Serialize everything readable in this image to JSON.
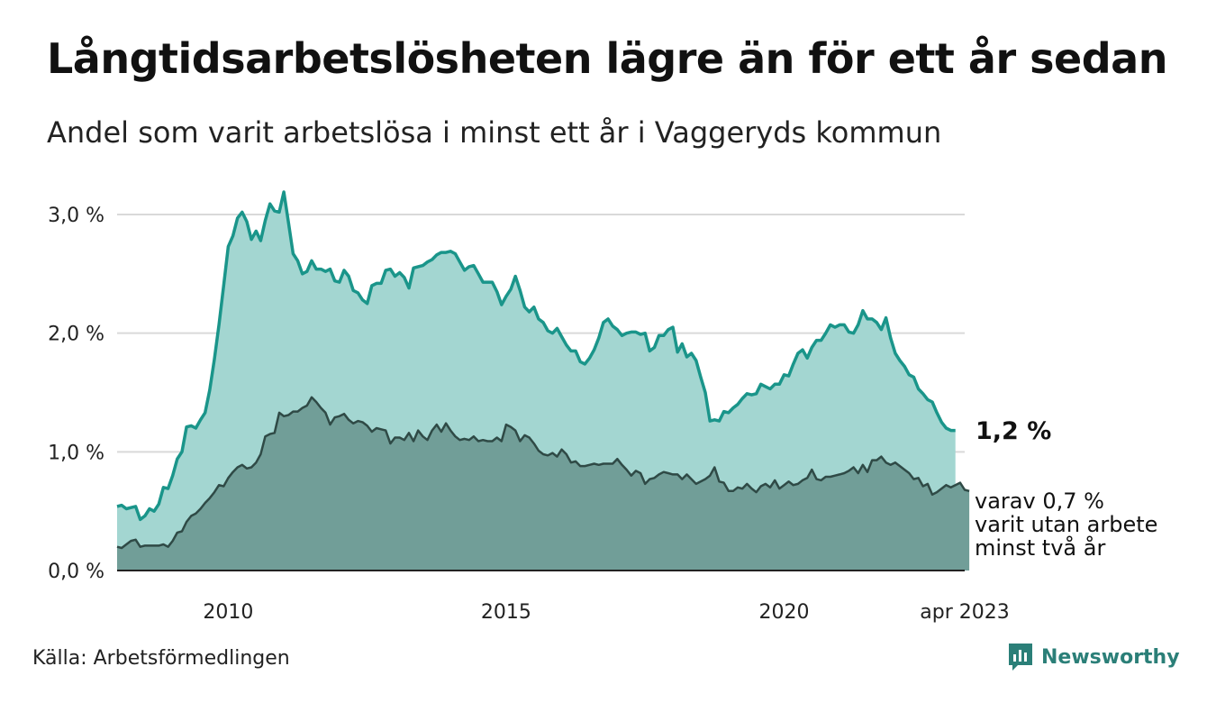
{
  "title": "Långtidsarbetslösheten lägre än för ett år sedan",
  "subtitle": "Andel som varit arbetslösa i minst ett år i Vaggeryds kommun",
  "source": "Källa: Arbetsförmedlingen",
  "brand": {
    "name": "Newsworthy",
    "icon": "newsworthy-logo-icon"
  },
  "colors": {
    "total_fill": "#a3d6d1",
    "total_line": "#1a958a",
    "sub_fill": "#719e98",
    "sub_line": "#2f4a46",
    "grid": "#d9d9d9",
    "brand": "#2b7f78"
  },
  "annotations": {
    "main": "1,2 %",
    "sub": [
      "varav 0,7 %",
      "varit utan arbete",
      "minst två år"
    ]
  },
  "chart_data": {
    "type": "area",
    "x_start": "2008-01",
    "x_end": "2023-04",
    "x_ticks": [
      {
        "x": "2010-01",
        "label": "2010"
      },
      {
        "x": "2015-01",
        "label": "2015"
      },
      {
        "x": "2020-01",
        "label": "2020"
      },
      {
        "x": "2023-04",
        "label": "apr 2023"
      }
    ],
    "y_ticks": [
      {
        "value": 0,
        "label": "0,0 %"
      },
      {
        "value": 1,
        "label": "1,0 %"
      },
      {
        "value": 2,
        "label": "2,0 %"
      },
      {
        "value": 3,
        "label": "3,0 %"
      }
    ],
    "ylim": [
      0,
      3.2
    ],
    "grid": true,
    "series": [
      {
        "values": [
          0.54,
          0.55,
          0.52,
          0.53,
          0.54,
          0.43,
          0.46,
          0.52,
          0.5,
          0.56,
          0.7,
          0.69,
          0.8,
          0.94,
          1.0,
          1.21,
          1.22,
          1.2,
          1.27,
          1.33,
          1.52,
          1.78,
          2.07,
          2.4,
          2.73,
          2.82,
          2.97,
          3.02,
          2.94,
          2.79,
          2.86,
          2.78,
          2.95,
          3.09,
          3.03,
          3.02,
          3.19,
          2.93,
          2.67,
          2.61,
          2.5,
          2.52,
          2.61,
          2.54,
          2.54,
          2.52,
          2.54,
          2.44,
          2.43,
          2.53,
          2.48,
          2.36,
          2.34,
          2.28,
          2.25,
          2.4,
          2.42,
          2.42,
          2.53,
          2.54,
          2.48,
          2.51,
          2.47,
          2.38,
          2.55,
          2.56,
          2.57,
          2.6,
          2.62,
          2.66,
          2.68,
          2.68,
          2.69,
          2.67,
          2.6,
          2.53,
          2.56,
          2.57,
          2.5,
          2.43,
          2.43,
          2.43,
          2.35,
          2.24,
          2.31,
          2.37,
          2.48,
          2.36,
          2.22,
          2.18,
          2.22,
          2.12,
          2.09,
          2.02,
          2.0,
          2.04,
          1.97,
          1.9,
          1.85,
          1.85,
          1.76,
          1.74,
          1.79,
          1.86,
          1.96,
          2.09,
          2.12,
          2.06,
          2.03,
          1.98,
          2.0,
          2.01,
          2.01,
          1.99,
          2.0,
          1.85,
          1.88,
          1.98,
          1.98,
          2.03,
          2.05,
          1.84,
          1.91,
          1.8,
          1.83,
          1.77,
          1.63,
          1.5,
          1.26,
          1.27,
          1.26,
          1.34,
          1.33,
          1.37,
          1.4,
          1.45,
          1.49,
          1.48,
          1.49,
          1.57,
          1.55,
          1.53,
          1.57,
          1.57,
          1.65,
          1.64,
          1.74,
          1.83,
          1.86,
          1.79,
          1.88,
          1.94,
          1.94,
          2.0,
          2.07,
          2.05,
          2.07,
          2.07,
          2.01,
          2.0,
          2.07,
          2.19,
          2.12,
          2.12,
          2.09,
          2.03,
          2.13,
          1.96,
          1.83,
          1.77,
          1.72,
          1.65,
          1.63,
          1.53,
          1.49,
          1.44,
          1.42,
          1.33,
          1.25,
          1.2,
          1.18,
          1.18
        ]
      },
      {
        "values": [
          0.2,
          0.19,
          0.22,
          0.25,
          0.26,
          0.2,
          0.21,
          0.21,
          0.21,
          0.21,
          0.22,
          0.2,
          0.25,
          0.32,
          0.33,
          0.41,
          0.46,
          0.48,
          0.52,
          0.57,
          0.61,
          0.66,
          0.72,
          0.71,
          0.78,
          0.83,
          0.87,
          0.89,
          0.86,
          0.87,
          0.91,
          0.98,
          1.13,
          1.15,
          1.16,
          1.33,
          1.3,
          1.31,
          1.34,
          1.34,
          1.37,
          1.39,
          1.46,
          1.42,
          1.37,
          1.33,
          1.23,
          1.29,
          1.3,
          1.32,
          1.27,
          1.24,
          1.26,
          1.25,
          1.22,
          1.17,
          1.2,
          1.19,
          1.18,
          1.07,
          1.12,
          1.12,
          1.1,
          1.16,
          1.09,
          1.18,
          1.13,
          1.1,
          1.18,
          1.23,
          1.17,
          1.24,
          1.18,
          1.13,
          1.1,
          1.11,
          1.1,
          1.13,
          1.09,
          1.1,
          1.09,
          1.09,
          1.12,
          1.09,
          1.23,
          1.21,
          1.18,
          1.09,
          1.14,
          1.12,
          1.07,
          1.01,
          0.98,
          0.97,
          0.99,
          0.96,
          1.02,
          0.98,
          0.91,
          0.92,
          0.88,
          0.88,
          0.89,
          0.9,
          0.89,
          0.9,
          0.9,
          0.9,
          0.94,
          0.89,
          0.85,
          0.8,
          0.84,
          0.82,
          0.73,
          0.77,
          0.78,
          0.81,
          0.83,
          0.82,
          0.81,
          0.81,
          0.77,
          0.81,
          0.77,
          0.73,
          0.75,
          0.77,
          0.8,
          0.87,
          0.75,
          0.74,
          0.67,
          0.67,
          0.7,
          0.69,
          0.73,
          0.69,
          0.66,
          0.71,
          0.73,
          0.7,
          0.76,
          0.69,
          0.72,
          0.75,
          0.72,
          0.73,
          0.76,
          0.78,
          0.85,
          0.77,
          0.76,
          0.79,
          0.79,
          0.8,
          0.81,
          0.82,
          0.84,
          0.87,
          0.82,
          0.89,
          0.83,
          0.93,
          0.93,
          0.96,
          0.91,
          0.89,
          0.91,
          0.88,
          0.85,
          0.82,
          0.77,
          0.78,
          0.71,
          0.73,
          0.64,
          0.66,
          0.69,
          0.72,
          0.7,
          0.72,
          0.74,
          0.68,
          0.67
        ]
      }
    ]
  }
}
